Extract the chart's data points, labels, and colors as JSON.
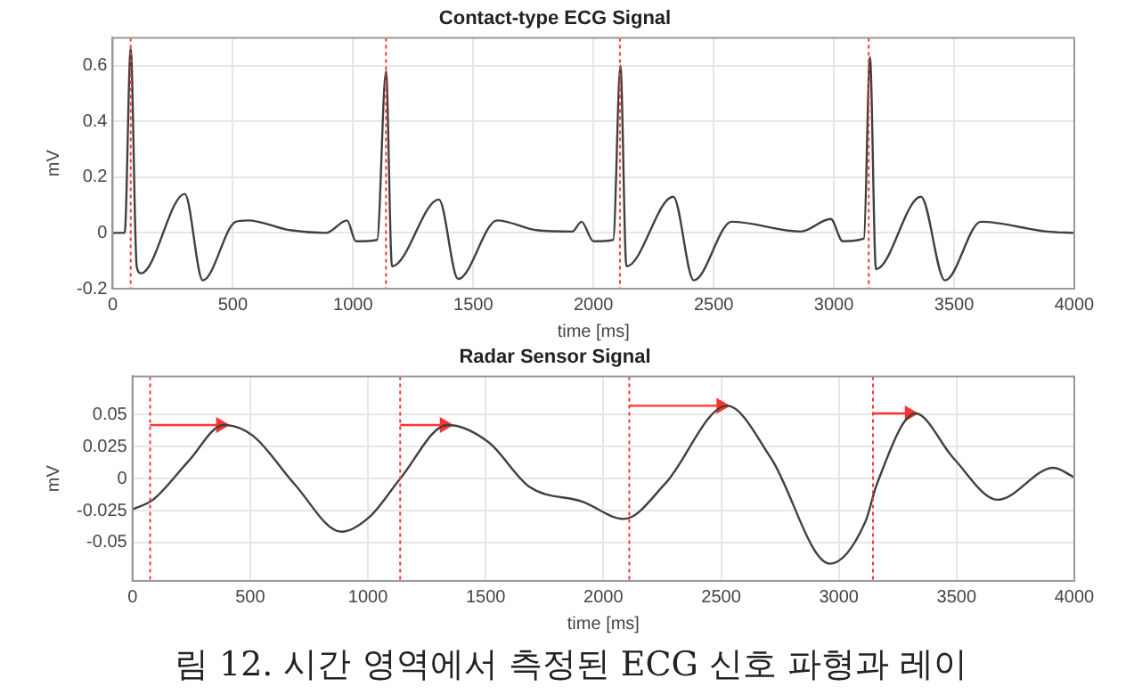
{
  "chart_data": [
    {
      "type": "line",
      "title": "Contact-type ECG Signal",
      "xlabel": "time [ms]",
      "ylabel": "mV",
      "xlim": [
        0,
        4000
      ],
      "xticks": [
        0,
        500,
        1000,
        1500,
        2000,
        2500,
        3000,
        3500,
        4000
      ],
      "ylim": [
        -0.2,
        0.7
      ],
      "yticks": [
        -0.2,
        0,
        0.2,
        0.4,
        0.6
      ],
      "grid": true,
      "legend": false,
      "marker": "none",
      "line_style": "solid",
      "series": [
        {
          "color": "#404040",
          "x": [
            0,
            50,
            75,
            100,
            118,
            300,
            375,
            512,
            562,
            737,
            887,
            975,
            1012,
            1100,
            1137,
            1162,
            1357,
            1437,
            1600,
            1762,
            1912,
            1950,
            2000,
            2082,
            2112,
            2137,
            2332,
            2417,
            2575,
            2862,
            2987,
            3037,
            3125,
            3150,
            3175,
            3362,
            3462,
            3612,
            3887,
            4000
          ],
          "values": [
            0,
            0,
            0.66,
            -0.12,
            -0.145,
            0.14,
            -0.17,
            0.04,
            0.045,
            0.01,
            0,
            0.045,
            -0.03,
            -0.025,
            0.58,
            -0.12,
            0.12,
            -0.165,
            0.045,
            0.01,
            0.005,
            0.04,
            -0.03,
            -0.025,
            0.6,
            -0.12,
            0.13,
            -0.17,
            0.04,
            0.005,
            0.05,
            -0.03,
            -0.02,
            0.63,
            -0.13,
            0.13,
            -0.17,
            0.04,
            0.005,
            0
          ]
        }
      ],
      "ref_lines": [
        {
          "axis": "x",
          "value": 75,
          "color": "#ff3333",
          "line_style": "dotted"
        },
        {
          "axis": "x",
          "value": 1137,
          "color": "#ff3333",
          "line_style": "dotted"
        },
        {
          "axis": "x",
          "value": 2110,
          "color": "#ff3333",
          "line_style": "dotted"
        },
        {
          "axis": "x",
          "value": 3145,
          "color": "#ff3333",
          "line_style": "dotted"
        }
      ]
    },
    {
      "type": "line",
      "title": "Radar Sensor Signal",
      "xlabel": "time [ms]",
      "ylabel": "mV",
      "xlim": [
        0,
        4000
      ],
      "xticks": [
        0,
        500,
        1000,
        1500,
        2000,
        2500,
        3000,
        3500,
        4000
      ],
      "ylim": [
        -0.08,
        0.08
      ],
      "yticks": [
        -0.05,
        -0.025,
        0,
        0.025,
        0.05
      ],
      "grid": true,
      "legend": false,
      "marker": "none",
      "line_style": "solid",
      "series": [
        {
          "color": "#404040",
          "x": [
            0,
            87,
            237,
            387,
            512,
            687,
            887,
            1012,
            1137,
            1337,
            1512,
            1687,
            1912,
            2087,
            2262,
            2525,
            2712,
            2962,
            3112,
            3162,
            3325,
            3487,
            3675,
            3912,
            4000
          ],
          "values": [
            -0.024,
            -0.0165,
            0.0135,
            0.042,
            0.0335,
            -0.004,
            -0.0415,
            -0.029,
            0,
            0.042,
            0.0285,
            -0.0065,
            -0.018,
            -0.0315,
            -0.004,
            0.057,
            0.016,
            -0.0665,
            -0.034,
            -0.004,
            0.051,
            0.016,
            -0.0165,
            0.0085,
            0.001
          ]
        },
        {
          "color": "#ff3333",
          "marker": "triangle",
          "x": [
            75,
            375
          ],
          "values": [
            0.042,
            0.042
          ]
        },
        {
          "color": "#ff3333",
          "marker": "triangle",
          "x": [
            1137,
            1325
          ],
          "values": [
            0.042,
            0.042
          ]
        },
        {
          "color": "#ff3333",
          "marker": "triangle",
          "x": [
            2110,
            2500
          ],
          "values": [
            0.057,
            0.057
          ]
        },
        {
          "color": "#ff3333",
          "marker": "triangle",
          "x": [
            3145,
            3300
          ],
          "values": [
            0.051,
            0.051
          ]
        }
      ],
      "ref_lines": [
        {
          "axis": "x",
          "value": 75,
          "color": "#ff3333",
          "line_style": "dotted"
        },
        {
          "axis": "x",
          "value": 1137,
          "color": "#ff3333",
          "line_style": "dotted"
        },
        {
          "axis": "x",
          "value": 2110,
          "color": "#ff3333",
          "line_style": "dotted"
        },
        {
          "axis": "x",
          "value": 3145,
          "color": "#ff3333",
          "line_style": "dotted"
        }
      ],
      "annotations": [
        "림 12. 시간 영역에서 측정된 ECG 신호 파형과 레이"
      ]
    }
  ]
}
